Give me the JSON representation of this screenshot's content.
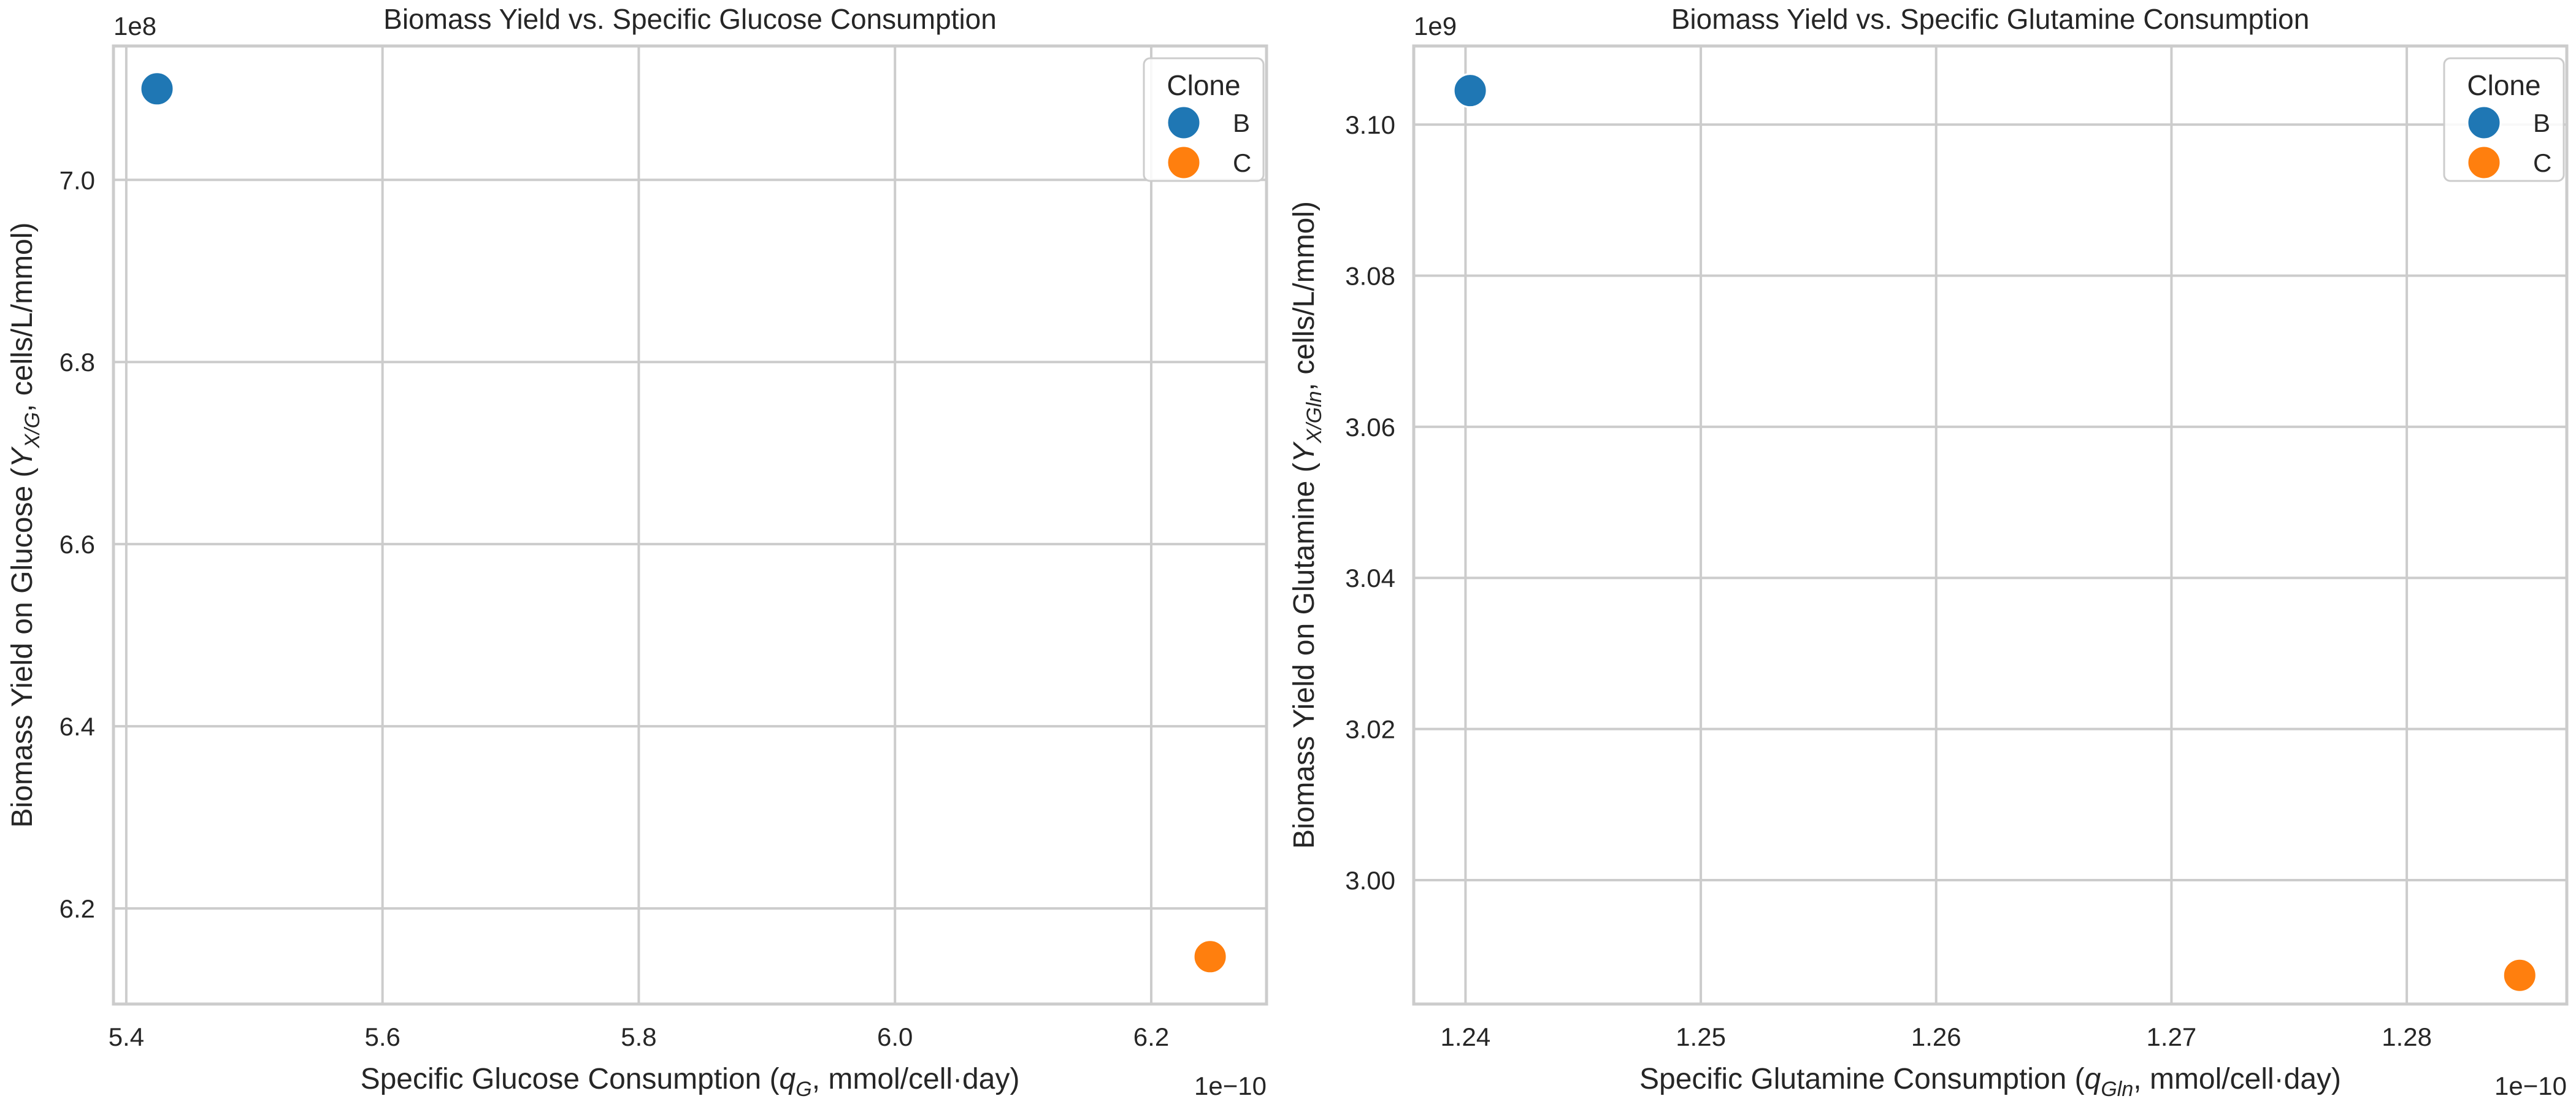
{
  "chart_data": [
    {
      "type": "scatter",
      "title": "Biomass Yield vs. Specific Glucose Consumption",
      "xlabel_parts": [
        "Specific Glucose Consumption (",
        "q",
        "G",
        ", mmol/cell·day)"
      ],
      "ylabel_parts": [
        "Biomass Yield on Glucose (",
        "Y",
        "X/G",
        ", cells/L/mmol)"
      ],
      "x_offset_text": "1e−10",
      "y_offset_text": "1e8",
      "xlim": [
        5.39,
        6.29
      ],
      "ylim": [
        6.095,
        7.147
      ],
      "xticks": [
        5.4,
        5.6,
        5.8,
        6.0,
        6.2
      ],
      "xtick_labels": [
        "5.4",
        "5.6",
        "5.8",
        "6.0",
        "6.2"
      ],
      "yticks": [
        6.2,
        6.4,
        6.6,
        6.8,
        7.0
      ],
      "ytick_labels": [
        "6.2",
        "6.4",
        "6.6",
        "6.8",
        "7.0"
      ],
      "legend_title": "Clone",
      "legend_position": "top-right",
      "grid": true,
      "series": [
        {
          "name": "B",
          "color": "#1f77b4",
          "x": [
            5.424
          ],
          "y": [
            7.1
          ]
        },
        {
          "name": "C",
          "color": "#ff7f0e",
          "x": [
            6.246
          ],
          "y": [
            6.147
          ]
        }
      ]
    },
    {
      "type": "scatter",
      "title": "Biomass Yield vs. Specific Glutamine Consumption",
      "xlabel_parts": [
        "Specific Glutamine Consumption (",
        "q",
        "Gln",
        ", mmol/cell·day)"
      ],
      "ylabel_parts": [
        "Biomass Yield on Glutamine (",
        "Y",
        "X/Gln",
        ", cells/L/mmol)"
      ],
      "x_offset_text": "1e−10",
      "y_offset_text": "1e9",
      "xlim": [
        1.2378,
        1.2868
      ],
      "ylim": [
        2.9836,
        3.1104
      ],
      "xticks": [
        1.24,
        1.25,
        1.26,
        1.27,
        1.28
      ],
      "xtick_labels": [
        "1.24",
        "1.25",
        "1.26",
        "1.27",
        "1.28"
      ],
      "yticks": [
        3.0,
        3.02,
        3.04,
        3.06,
        3.08,
        3.1
      ],
      "ytick_labels": [
        "3.00",
        "3.02",
        "3.04",
        "3.06",
        "3.08",
        "3.10"
      ],
      "legend_title": "Clone",
      "legend_position": "top-right",
      "grid": true,
      "series": [
        {
          "name": "B",
          "color": "#1f77b4",
          "x": [
            1.2402
          ],
          "y": [
            3.1045
          ]
        },
        {
          "name": "C",
          "color": "#ff7f0e",
          "x": [
            1.2848
          ],
          "y": [
            2.9874
          ]
        }
      ]
    }
  ]
}
